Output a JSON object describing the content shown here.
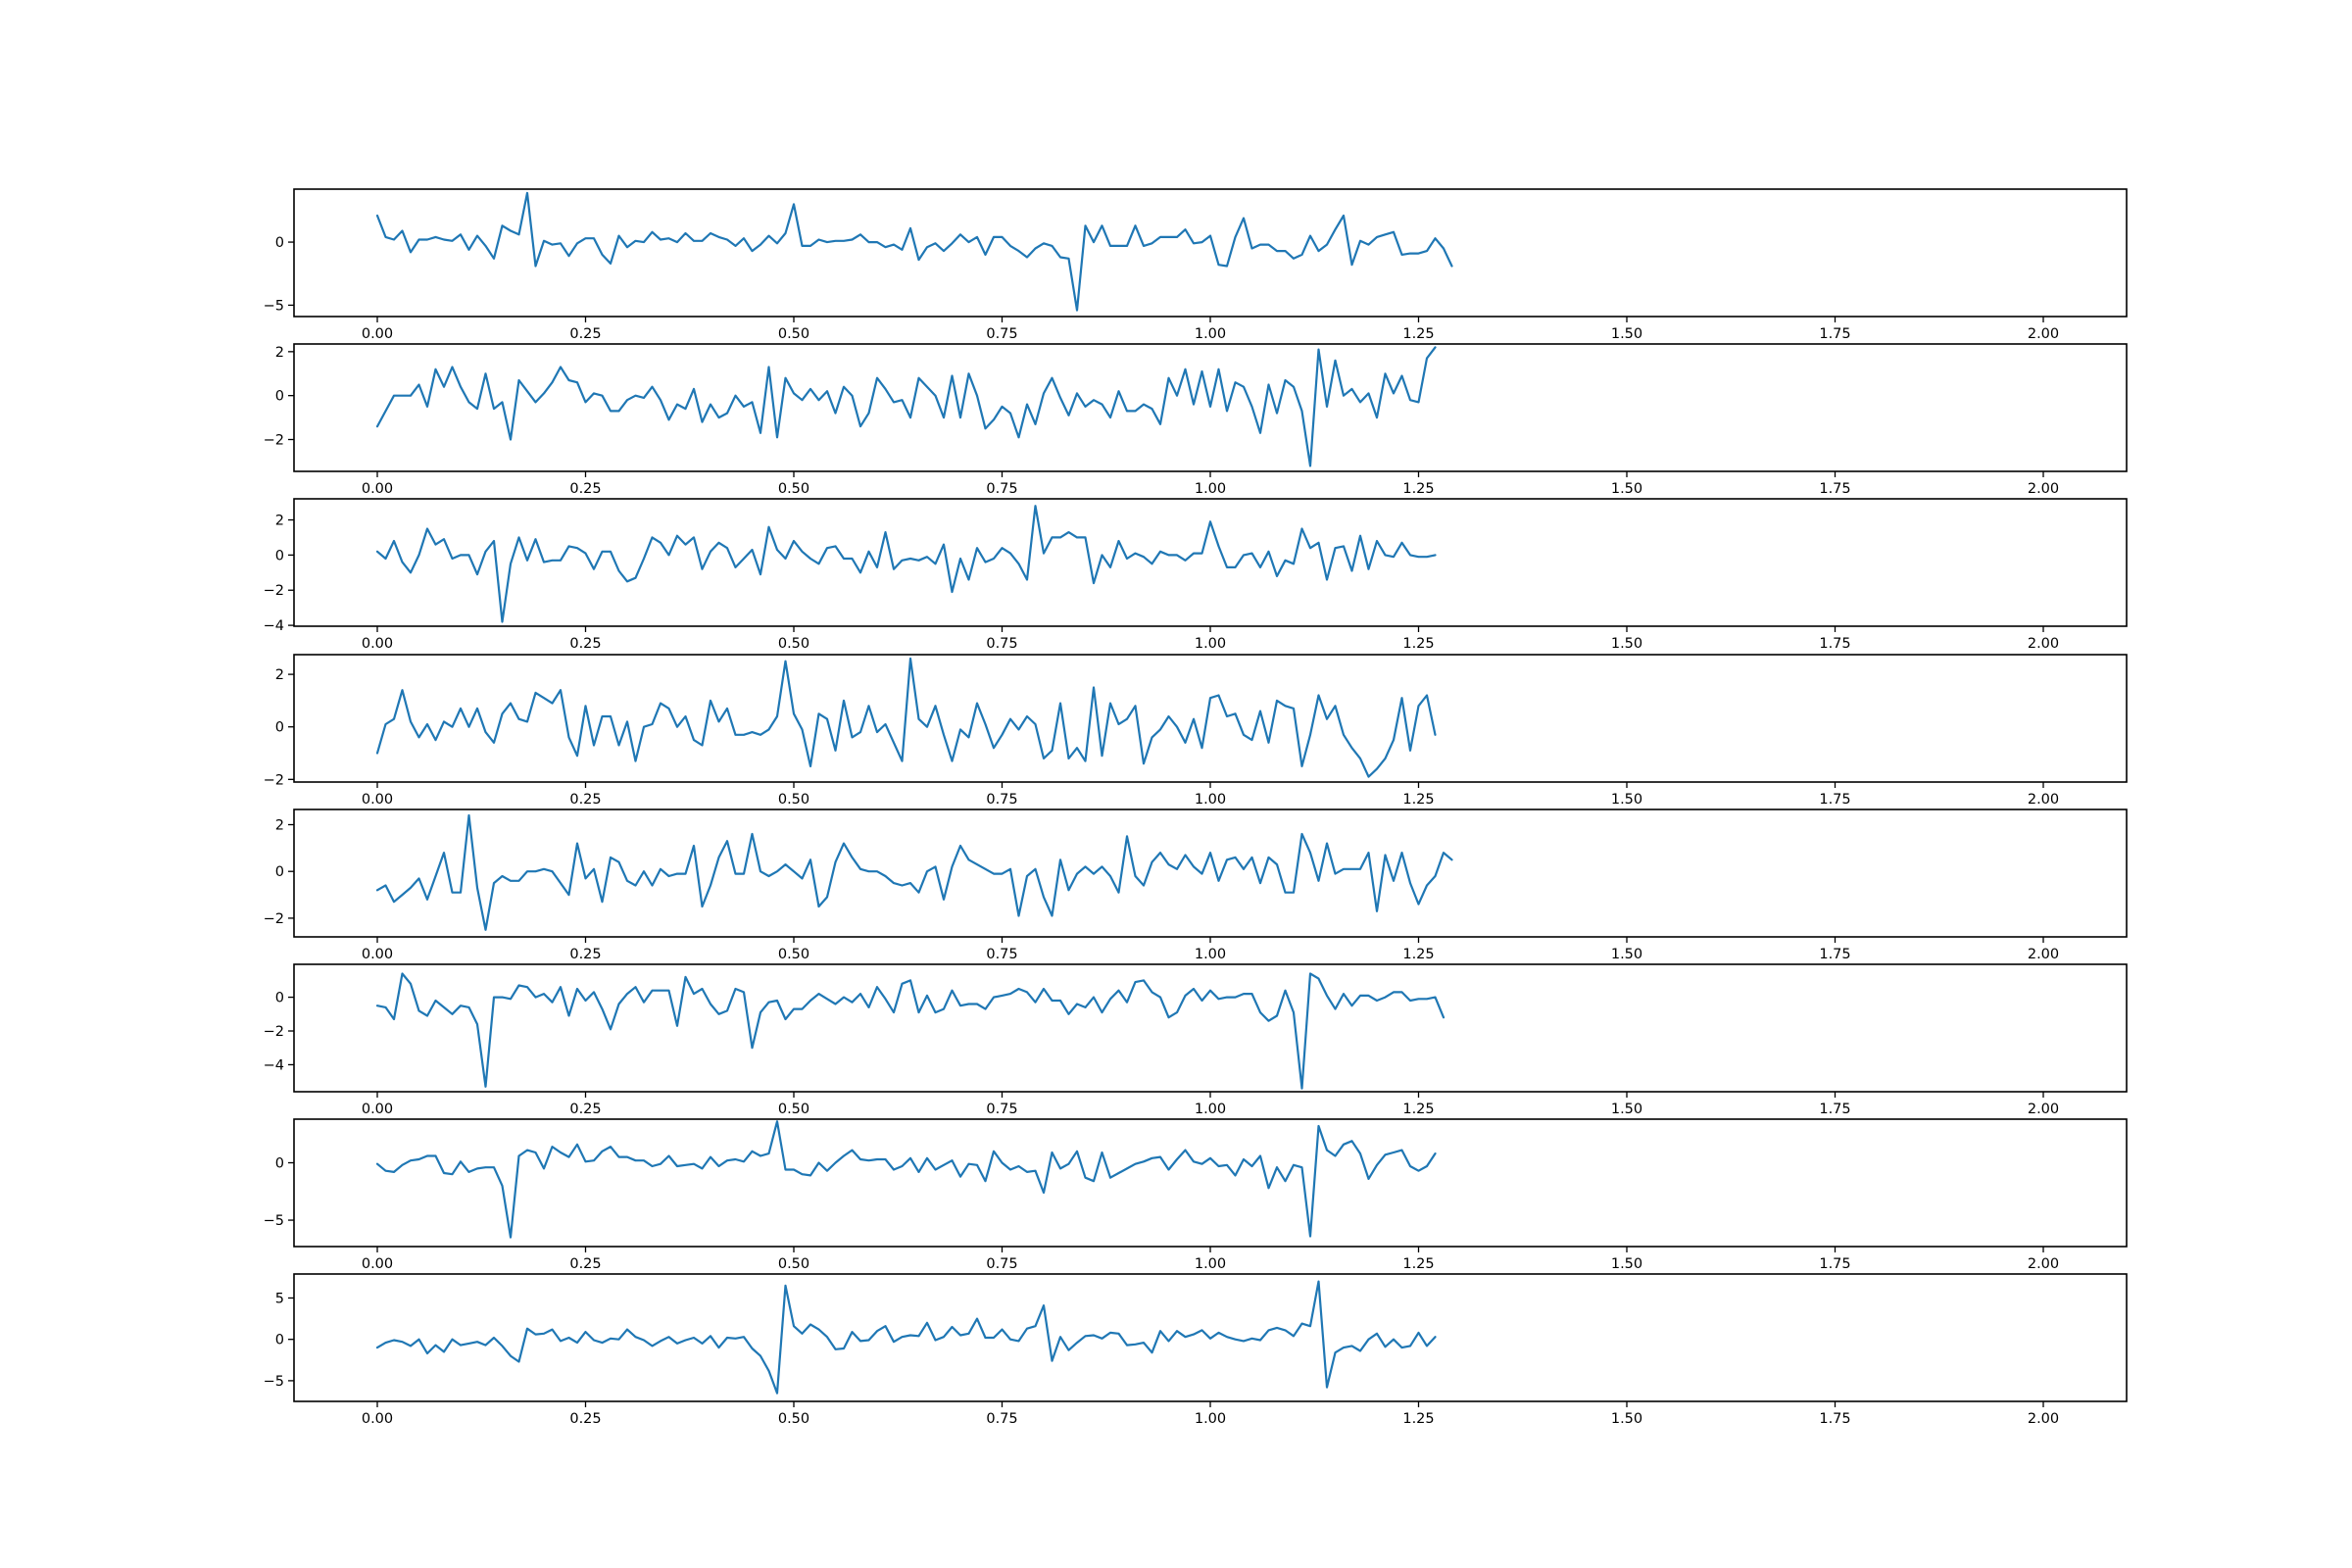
{
  "chart_data": [
    {
      "type": "line",
      "color": "#1f77b4",
      "xlim": [
        -0.1,
        2.1
      ],
      "ylim": [
        -5.9,
        4.2
      ],
      "xticks": [
        0.0,
        0.25,
        0.5,
        0.75,
        1.0,
        1.25,
        1.5,
        1.75,
        2.0
      ],
      "xtick_labels": [
        "0.00",
        "0.25",
        "0.50",
        "0.75",
        "1.00",
        "1.25",
        "1.50",
        "1.75",
        "2.00"
      ],
      "yticks": [
        -5,
        0
      ],
      "ytick_labels": [
        "−5",
        "0"
      ],
      "x_start": 0,
      "x_step": 0.01,
      "y": [
        2.1,
        0.4,
        0.2,
        0.9,
        -0.8,
        0.2,
        0.2,
        0.4,
        0.2,
        0.1,
        0.6,
        -0.6,
        0.5,
        -0.3,
        -1.3,
        1.3,
        0.9,
        0.6,
        3.9,
        -1.9,
        0.1,
        -0.2,
        -0.1,
        -1.1,
        -0.1,
        0.3,
        0.3,
        -1.0,
        -1.7,
        0.5,
        -0.4,
        0.1,
        0.0,
        0.8,
        0.2,
        0.3,
        0.0,
        0.7,
        0.1,
        0.1,
        0.7,
        0.4,
        0.2,
        -0.3,
        0.3,
        -0.7,
        -0.2,
        0.5,
        -0.1,
        0.7,
        3.0,
        -0.3,
        -0.3,
        0.2,
        0.0,
        0.1,
        0.1,
        0.2,
        0.6,
        0.0,
        0.0,
        -0.4,
        -0.2,
        -0.6,
        1.1,
        -1.4,
        -0.4,
        -0.1,
        -0.7,
        -0.1,
        0.6,
        0.0,
        0.4,
        -1.0,
        0.4,
        0.4,
        -0.3,
        -0.7,
        -1.2,
        -0.5,
        -0.1,
        -0.3,
        -1.2,
        -1.3,
        -5.4,
        1.3,
        0.0,
        1.3,
        -0.3,
        -0.3,
        -0.3,
        1.3,
        -0.3,
        -0.1,
        0.4,
        0.4,
        0.4,
        1.0,
        -0.1,
        0.0,
        0.5,
        -1.8,
        -1.9,
        0.4,
        1.9,
        -0.5,
        -0.2,
        -0.2,
        -0.7,
        -0.7,
        -1.3,
        -1.0,
        0.5,
        -0.7,
        -0.2,
        1.0,
        2.1,
        -1.8,
        0.1,
        -0.2,
        0.4,
        0.6,
        0.8,
        -1.0,
        -0.9,
        -0.9,
        -0.7,
        0.3,
        -0.5,
        -1.9
      ]
    },
    {
      "type": "line",
      "color": "#1f77b4",
      "xlim": [
        -0.1,
        2.1
      ],
      "ylim": [
        -3.45,
        2.35
      ],
      "xticks": [
        0.0,
        0.25,
        0.5,
        0.75,
        1.0,
        1.25,
        1.5,
        1.75,
        2.0
      ],
      "xtick_labels": [
        "0.00",
        "0.25",
        "0.50",
        "0.75",
        "1.00",
        "1.25",
        "1.50",
        "1.75",
        "2.00"
      ],
      "yticks": [
        -2,
        0,
        2
      ],
      "ytick_labels": [
        "−2",
        "0",
        "2"
      ],
      "x_start": 0,
      "x_step": 0.01,
      "y": [
        -1.4,
        -0.7,
        0.0,
        0.0,
        0.0,
        0.5,
        -0.5,
        1.2,
        0.4,
        1.3,
        0.4,
        -0.3,
        -0.6,
        1.0,
        -0.6,
        -0.3,
        -2.0,
        0.7,
        0.2,
        -0.3,
        0.1,
        0.6,
        1.3,
        0.7,
        0.6,
        -0.3,
        0.1,
        0.0,
        -0.7,
        -0.7,
        -0.2,
        0.0,
        -0.1,
        0.4,
        -0.2,
        -1.1,
        -0.4,
        -0.6,
        0.3,
        -1.2,
        -0.4,
        -1.0,
        -0.8,
        0.0,
        -0.5,
        -0.3,
        -1.7,
        1.3,
        -1.9,
        0.8,
        0.1,
        -0.2,
        0.3,
        -0.2,
        0.2,
        -0.8,
        0.4,
        0.0,
        -1.4,
        -0.8,
        0.8,
        0.3,
        -0.3,
        -0.2,
        -1.0,
        0.8,
        0.4,
        0.0,
        -1.0,
        0.9,
        -1.0,
        1.0,
        0.0,
        -1.5,
        -1.1,
        -0.5,
        -0.8,
        -1.9,
        -0.4,
        -1.3,
        0.1,
        0.8,
        -0.1,
        -0.9,
        0.1,
        -0.5,
        -0.2,
        -0.4,
        -1.0,
        0.2,
        -0.7,
        -0.7,
        -0.4,
        -0.6,
        -1.3,
        0.8,
        0.0,
        1.2,
        -0.4,
        1.1,
        -0.5,
        1.2,
        -0.7,
        0.6,
        0.4,
        -0.5,
        -1.7,
        0.5,
        -0.8,
        0.7,
        0.4,
        -0.7,
        -3.2,
        2.1,
        -0.5,
        1.6,
        0.0,
        0.3,
        -0.3,
        0.1,
        -1.0,
        1.0,
        0.1,
        0.9,
        -0.2,
        -0.3,
        1.7,
        2.2
      ]
    },
    {
      "type": "line",
      "color": "#1f77b4",
      "xlim": [
        -0.1,
        2.1
      ],
      "ylim": [
        -4.05,
        3.2
      ],
      "xticks": [
        0.0,
        0.25,
        0.5,
        0.75,
        1.0,
        1.25,
        1.5,
        1.75,
        2.0
      ],
      "xtick_labels": [
        "0.00",
        "0.25",
        "0.50",
        "0.75",
        "1.00",
        "1.25",
        "1.50",
        "1.75",
        "2.00"
      ],
      "yticks": [
        -4,
        -2,
        0,
        2
      ],
      "ytick_labels": [
        "−4",
        "−2",
        "0",
        "2"
      ],
      "x_start": 0,
      "x_step": 0.01,
      "y": [
        0.2,
        -0.2,
        0.8,
        -0.4,
        -1.0,
        0.0,
        1.5,
        0.6,
        0.9,
        -0.2,
        0.0,
        0.0,
        -1.1,
        0.2,
        0.8,
        -3.8,
        -0.5,
        1.0,
        -0.3,
        0.9,
        -0.4,
        -0.3,
        -0.3,
        0.5,
        0.4,
        0.1,
        -0.8,
        0.2,
        0.2,
        -0.9,
        -1.5,
        -1.3,
        -0.2,
        1.0,
        0.7,
        0.0,
        1.1,
        0.6,
        1.0,
        -0.8,
        0.2,
        0.7,
        0.4,
        -0.7,
        -0.2,
        0.3,
        -1.1,
        1.6,
        0.3,
        -0.2,
        0.8,
        0.2,
        -0.2,
        -0.5,
        0.4,
        0.5,
        -0.2,
        -0.2,
        -1.0,
        0.2,
        -0.7,
        1.3,
        -0.8,
        -0.3,
        -0.2,
        -0.3,
        -0.1,
        -0.5,
        0.6,
        -2.1,
        -0.2,
        -1.4,
        0.4,
        -0.4,
        -0.2,
        0.4,
        0.1,
        -0.5,
        -1.4,
        2.8,
        0.1,
        1.0,
        1.0,
        1.3,
        1.0,
        1.0,
        -1.6,
        0.0,
        -0.7,
        0.8,
        -0.2,
        0.1,
        -0.1,
        -0.5,
        0.2,
        0.0,
        0.0,
        -0.3,
        0.1,
        0.1,
        1.9,
        0.5,
        -0.7,
        -0.7,
        0.0,
        0.1,
        -0.7,
        0.2,
        -1.2,
        -0.3,
        -0.5,
        1.5,
        0.4,
        0.7,
        -1.4,
        0.4,
        0.5,
        -0.9,
        1.1,
        -0.8,
        0.8,
        0.0,
        -0.1,
        0.7,
        0.0,
        -0.1,
        -0.1,
        0.0
      ]
    },
    {
      "type": "line",
      "color": "#1f77b4",
      "xlim": [
        -0.1,
        2.1
      ],
      "ylim": [
        -2.1,
        2.75
      ],
      "xticks": [
        0.0,
        0.25,
        0.5,
        0.75,
        1.0,
        1.25,
        1.5,
        1.75,
        2.0
      ],
      "xtick_labels": [
        "0.00",
        "0.25",
        "0.50",
        "0.75",
        "1.00",
        "1.25",
        "1.50",
        "1.75",
        "2.00"
      ],
      "yticks": [
        -2,
        0,
        2
      ],
      "ytick_labels": [
        "−2",
        "0",
        "2"
      ],
      "x_start": 0,
      "x_step": 0.01,
      "y": [
        -1.0,
        0.1,
        0.3,
        1.4,
        0.2,
        -0.4,
        0.1,
        -0.5,
        0.2,
        0.0,
        0.7,
        0.0,
        0.7,
        -0.2,
        -0.6,
        0.5,
        0.9,
        0.3,
        0.2,
        1.3,
        1.1,
        0.9,
        1.4,
        -0.4,
        -1.1,
        0.8,
        -0.7,
        0.4,
        0.4,
        -0.7,
        0.2,
        -1.3,
        0.0,
        0.1,
        0.9,
        0.7,
        0.0,
        0.4,
        -0.5,
        -0.7,
        1.0,
        0.2,
        0.7,
        -0.3,
        -0.3,
        -0.2,
        -0.3,
        -0.1,
        0.4,
        2.5,
        0.5,
        -0.1,
        -1.5,
        0.5,
        0.3,
        -0.9,
        1.0,
        -0.4,
        -0.2,
        0.8,
        -0.2,
        0.1,
        -0.6,
        -1.3,
        2.6,
        0.3,
        0.0,
        0.8,
        -0.3,
        -1.3,
        -0.1,
        -0.4,
        0.9,
        0.1,
        -0.8,
        -0.3,
        0.3,
        -0.1,
        0.4,
        0.1,
        -1.2,
        -0.9,
        0.9,
        -1.2,
        -0.8,
        -1.3,
        1.5,
        -1.1,
        0.9,
        0.1,
        0.3,
        0.8,
        -1.4,
        -0.4,
        -0.1,
        0.4,
        0.0,
        -0.6,
        0.3,
        -0.8,
        1.1,
        1.2,
        0.4,
        0.5,
        -0.3,
        -0.5,
        0.6,
        -0.6,
        1.0,
        0.8,
        0.7,
        -1.5,
        -0.3,
        1.2,
        0.3,
        0.8,
        -0.3,
        -0.8,
        -1.2,
        -1.9,
        -1.6,
        -1.2,
        -0.5,
        1.1,
        -0.9,
        0.8,
        1.2,
        -0.3
      ]
    },
    {
      "type": "line",
      "color": "#1f77b4",
      "xlim": [
        -0.1,
        2.1
      ],
      "ylim": [
        -2.8,
        2.65
      ],
      "xticks": [
        0.0,
        0.25,
        0.5,
        0.75,
        1.0,
        1.25,
        1.5,
        1.75,
        2.0
      ],
      "xtick_labels": [
        "0.00",
        "0.25",
        "0.50",
        "0.75",
        "1.00",
        "1.25",
        "1.50",
        "1.75",
        "2.00"
      ],
      "yticks": [
        -2,
        0,
        2
      ],
      "ytick_labels": [
        "−2",
        "0",
        "2"
      ],
      "x_start": 0,
      "x_step": 0.01,
      "y": [
        -0.8,
        -0.6,
        -1.3,
        -1.0,
        -0.7,
        -0.3,
        -1.2,
        -0.2,
        0.8,
        -0.9,
        -0.9,
        2.4,
        -0.7,
        -2.5,
        -0.5,
        -0.2,
        -0.4,
        -0.4,
        0.0,
        0.0,
        0.1,
        0.0,
        -0.5,
        -1.0,
        1.2,
        -0.3,
        0.1,
        -1.3,
        0.6,
        0.4,
        -0.4,
        -0.6,
        0.0,
        -0.6,
        0.1,
        -0.2,
        -0.1,
        -0.1,
        1.1,
        -1.5,
        -0.6,
        0.6,
        1.3,
        -0.1,
        -0.1,
        1.6,
        0.0,
        -0.2,
        0.0,
        0.3,
        0.0,
        -0.3,
        0.5,
        -1.5,
        -1.1,
        0.4,
        1.2,
        0.6,
        0.1,
        0.0,
        0.0,
        -0.2,
        -0.5,
        -0.6,
        -0.5,
        -0.9,
        0.0,
        0.2,
        -1.2,
        0.2,
        1.1,
        0.5,
        0.3,
        0.1,
        -0.1,
        -0.1,
        0.1,
        -1.9,
        -0.2,
        0.1,
        -1.1,
        -1.9,
        0.5,
        -0.8,
        -0.1,
        0.2,
        -0.1,
        0.2,
        -0.2,
        -0.9,
        1.5,
        -0.2,
        -0.6,
        0.4,
        0.8,
        0.3,
        0.1,
        0.7,
        0.2,
        -0.1,
        0.8,
        -0.4,
        0.5,
        0.6,
        0.1,
        0.6,
        -0.5,
        0.6,
        0.3,
        -0.9,
        -0.9,
        1.6,
        0.8,
        -0.4,
        1.2,
        -0.1,
        0.1,
        0.1,
        0.1,
        0.8,
        -1.7,
        0.7,
        -0.4,
        0.8,
        -0.5,
        -1.4,
        -0.6,
        -0.2,
        0.8,
        0.5
      ]
    },
    {
      "type": "line",
      "color": "#1f77b4",
      "xlim": [
        -0.1,
        2.1
      ],
      "ylim": [
        -5.6,
        1.95
      ],
      "xticks": [
        0.0,
        0.25,
        0.5,
        0.75,
        1.0,
        1.25,
        1.5,
        1.75,
        2.0
      ],
      "xtick_labels": [
        "0.00",
        "0.25",
        "0.50",
        "0.75",
        "1.00",
        "1.25",
        "1.50",
        "1.75",
        "2.00"
      ],
      "yticks": [
        -4,
        -2,
        0
      ],
      "ytick_labels": [
        "−4",
        "−2",
        "0"
      ],
      "x_start": 0,
      "x_step": 0.01,
      "y": [
        -0.5,
        -0.6,
        -1.3,
        1.4,
        0.8,
        -0.8,
        -1.1,
        -0.2,
        -0.6,
        -1.0,
        -0.5,
        -0.6,
        -1.6,
        -5.3,
        0.0,
        0.0,
        -0.1,
        0.7,
        0.6,
        0.0,
        0.2,
        -0.3,
        0.6,
        -1.1,
        0.5,
        -0.2,
        0.3,
        -0.7,
        -1.9,
        -0.4,
        0.2,
        0.6,
        -0.3,
        0.4,
        0.4,
        0.4,
        -1.7,
        1.2,
        0.2,
        0.5,
        -0.4,
        -1.0,
        -0.8,
        0.5,
        0.3,
        -3.0,
        -0.9,
        -0.3,
        -0.2,
        -1.3,
        -0.7,
        -0.7,
        -0.2,
        0.2,
        -0.1,
        -0.4,
        0.0,
        -0.3,
        0.2,
        -0.6,
        0.6,
        -0.1,
        -0.9,
        0.8,
        1.0,
        -0.9,
        0.1,
        -0.9,
        -0.7,
        0.4,
        -0.5,
        -0.4,
        -0.4,
        -0.7,
        0.0,
        0.1,
        0.2,
        0.5,
        0.3,
        -0.3,
        0.5,
        -0.2,
        -0.2,
        -1.0,
        -0.4,
        -0.6,
        0.0,
        -0.9,
        -0.1,
        0.4,
        -0.3,
        0.9,
        1.0,
        0.3,
        0.0,
        -1.2,
        -0.9,
        0.1,
        0.5,
        -0.2,
        0.4,
        -0.1,
        0.0,
        0.0,
        0.2,
        0.2,
        -0.9,
        -1.4,
        -1.1,
        0.4,
        -0.9,
        -5.4,
        1.4,
        1.1,
        0.1,
        -0.7,
        0.2,
        -0.5,
        0.1,
        0.1,
        -0.2,
        0.0,
        0.3,
        0.3,
        -0.2,
        -0.1,
        -0.1,
        0.0,
        -1.2
      ]
    },
    {
      "type": "line",
      "color": "#1f77b4",
      "xlim": [
        -0.1,
        2.1
      ],
      "ylim": [
        -7.3,
        3.8
      ],
      "xticks": [
        0.0,
        0.25,
        0.5,
        0.75,
        1.0,
        1.25,
        1.5,
        1.75,
        2.0
      ],
      "xtick_labels": [
        "0.00",
        "0.25",
        "0.50",
        "0.75",
        "1.00",
        "1.25",
        "1.50",
        "1.75",
        "2.00"
      ],
      "yticks": [
        -5,
        0
      ],
      "ytick_labels": [
        "−5",
        "0"
      ],
      "x_start": 0,
      "x_step": 0.01,
      "y": [
        -0.1,
        -0.7,
        -0.8,
        -0.2,
        0.2,
        0.3,
        0.6,
        0.6,
        -0.9,
        -1.0,
        0.1,
        -0.8,
        -0.5,
        -0.4,
        -0.4,
        -2.0,
        -6.5,
        0.6,
        1.1,
        0.9,
        -0.5,
        1.4,
        0.9,
        0.5,
        1.6,
        0.1,
        0.2,
        1.0,
        1.4,
        0.5,
        0.5,
        0.2,
        0.2,
        -0.3,
        -0.1,
        0.6,
        -0.3,
        -0.2,
        -0.1,
        -0.5,
        0.5,
        -0.3,
        0.2,
        0.3,
        0.1,
        1.0,
        0.6,
        0.8,
        3.6,
        -0.6,
        -0.6,
        -1.0,
        -1.1,
        0.0,
        -0.7,
        0.0,
        0.6,
        1.1,
        0.3,
        0.2,
        0.3,
        0.3,
        -0.6,
        -0.3,
        0.4,
        -0.8,
        0.4,
        -0.6,
        -0.2,
        0.2,
        -1.2,
        -0.1,
        -0.2,
        -1.6,
        1.0,
        0.0,
        -0.6,
        -0.3,
        -0.8,
        -0.7,
        -2.6,
        0.9,
        -0.5,
        -0.1,
        1.0,
        -1.3,
        -1.6,
        0.9,
        -1.3,
        -0.9,
        -0.5,
        -0.1,
        0.1,
        0.4,
        0.5,
        -0.6,
        0.3,
        1.1,
        0.1,
        -0.1,
        0.4,
        -0.3,
        -0.2,
        -1.1,
        0.3,
        -0.3,
        0.6,
        -2.2,
        -0.4,
        -1.6,
        -0.2,
        -0.4,
        -6.4,
        3.2,
        1.1,
        0.6,
        1.6,
        1.9,
        0.8,
        -1.4,
        -0.2,
        0.7,
        0.9,
        1.1,
        -0.3,
        -0.7,
        -0.3,
        0.8
      ]
    },
    {
      "type": "line",
      "color": "#1f77b4",
      "xlim": [
        -0.1,
        2.1
      ],
      "ylim": [
        -7.5,
        7.9
      ],
      "xticks": [
        0.0,
        0.25,
        0.5,
        0.75,
        1.0,
        1.25,
        1.5,
        1.75,
        2.0
      ],
      "xtick_labels": [
        "0.00",
        "0.25",
        "0.50",
        "0.75",
        "1.00",
        "1.25",
        "1.50",
        "1.75",
        "2.00"
      ],
      "yticks": [
        -5,
        0,
        5
      ],
      "ytick_labels": [
        "−5",
        "0",
        "5"
      ],
      "x_start": 0,
      "x_step": 0.01,
      "y": [
        -1.0,
        -0.4,
        -0.1,
        -0.3,
        -0.8,
        0.0,
        -1.7,
        -0.7,
        -1.5,
        0.0,
        -0.7,
        -0.5,
        -0.3,
        -0.7,
        0.2,
        -0.8,
        -2.0,
        -2.7,
        1.3,
        0.6,
        0.7,
        1.2,
        -0.2,
        0.2,
        -0.4,
        0.9,
        -0.1,
        -0.4,
        0.1,
        0.0,
        1.2,
        0.3,
        -0.1,
        -0.8,
        -0.2,
        0.3,
        -0.5,
        -0.1,
        0.2,
        -0.5,
        0.4,
        -1.0,
        0.2,
        0.1,
        0.3,
        -1.1,
        -2.0,
        -3.8,
        -6.5,
        6.5,
        1.6,
        0.7,
        1.8,
        1.2,
        0.3,
        -1.2,
        -1.1,
        0.9,
        -0.2,
        -0.1,
        1.0,
        1.6,
        -0.3,
        0.3,
        0.5,
        0.4,
        2.0,
        -0.1,
        0.3,
        1.5,
        0.5,
        0.7,
        2.5,
        0.2,
        0.2,
        1.2,
        0.0,
        -0.2,
        1.3,
        1.6,
        4.1,
        -2.6,
        0.3,
        -1.3,
        -0.4,
        0.4,
        0.5,
        0.1,
        0.8,
        0.7,
        -0.7,
        -0.6,
        -0.4,
        -1.6,
        1.0,
        -0.2,
        1.0,
        0.3,
        0.6,
        1.1,
        0.1,
        0.8,
        0.3,
        0.0,
        -0.2,
        0.1,
        -0.1,
        1.1,
        1.4,
        1.1,
        0.4,
        1.9,
        1.6,
        7.0,
        -5.8,
        -1.6,
        -1.0,
        -0.8,
        -1.4,
        0.0,
        0.7,
        -0.9,
        0.0,
        -1.0,
        -0.8,
        0.8,
        -0.8,
        0.3
      ]
    }
  ]
}
